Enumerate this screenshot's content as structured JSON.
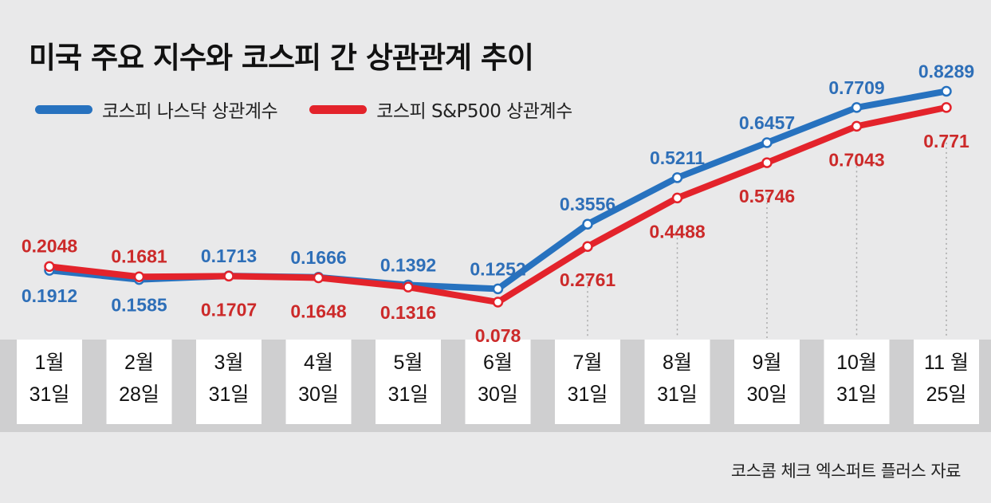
{
  "title": "미국 주요 지수와 코스피 간 상관관계 추이",
  "source": "코스콤 체크 엑스퍼트 플러스 자료",
  "colors": {
    "nasdaq": "#2772bf",
    "sp500": "#e3232b",
    "label_blue": "#2e6fb8",
    "label_red": "#cc2a2a",
    "background": "#e9e9ea",
    "band": "#cfcfd0",
    "card": "#ffffff"
  },
  "chart_data": {
    "type": "line",
    "title": "미국 주요 지수와 코스피 간 상관관계 추이",
    "categories": [
      [
        "1월",
        "31일"
      ],
      [
        "2월",
        "28일"
      ],
      [
        "3월",
        "31일"
      ],
      [
        "4월",
        "30일"
      ],
      [
        "5월",
        "31일"
      ],
      [
        "6월",
        "30일"
      ],
      [
        "7월",
        "31일"
      ],
      [
        "8월",
        "31일"
      ],
      [
        "9월",
        "30일"
      ],
      [
        "10월",
        "31일"
      ],
      [
        "11 월",
        "25일"
      ]
    ],
    "series": [
      {
        "name": "코스피 나스닥 상관계수",
        "values": [
          0.1912,
          0.1585,
          0.1713,
          0.1666,
          0.1392,
          0.1252,
          0.3556,
          0.5211,
          0.6457,
          0.7709,
          0.8289
        ],
        "labels": [
          "0.1912",
          "0.1585",
          "0.1713",
          "0.1666",
          "0.1392",
          "0.1252",
          "0.3556",
          "0.5211",
          "0.6457",
          "0.7709",
          "0.8289"
        ]
      },
      {
        "name": "코스피 S&P500 상관계수",
        "values": [
          0.2048,
          0.1681,
          0.1707,
          0.1648,
          0.1316,
          0.078,
          0.2761,
          0.4488,
          0.5746,
          0.7043,
          0.771
        ],
        "labels": [
          "0.2048",
          "0.1681",
          "0.1707",
          "0.1648",
          "0.1316",
          "0.078",
          "0.2761",
          "0.4488",
          "0.5746",
          "0.7043",
          "0.771"
        ]
      }
    ],
    "ylim": [
      0,
      0.9
    ],
    "grid": false,
    "legend_position": "top-left"
  }
}
